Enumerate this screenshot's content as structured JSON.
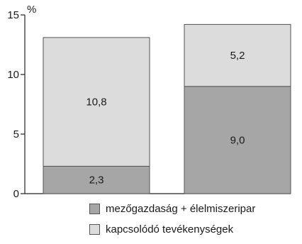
{
  "chart_data": {
    "type": "bar",
    "stacked": true,
    "categories": [
      "",
      ""
    ],
    "series": [
      {
        "name": "mezőgazdaság + élelmiszeripar",
        "values": [
          2.3,
          9.0
        ],
        "labels": [
          "2,3",
          "9,0"
        ],
        "color": "#a6a6a6"
      },
      {
        "name": "kapcsolódó tevékenységek",
        "values": [
          10.8,
          5.2
        ],
        "labels": [
          "10,8",
          "5,2"
        ],
        "color": "#dcdcdc"
      }
    ],
    "ylim": [
      0,
      15
    ],
    "yticks": [
      0,
      5,
      10,
      15
    ],
    "ytick_labels": [
      "0",
      "5",
      "10",
      "15"
    ],
    "ylabel": "%",
    "grid": false,
    "legend_position": "bottom"
  }
}
